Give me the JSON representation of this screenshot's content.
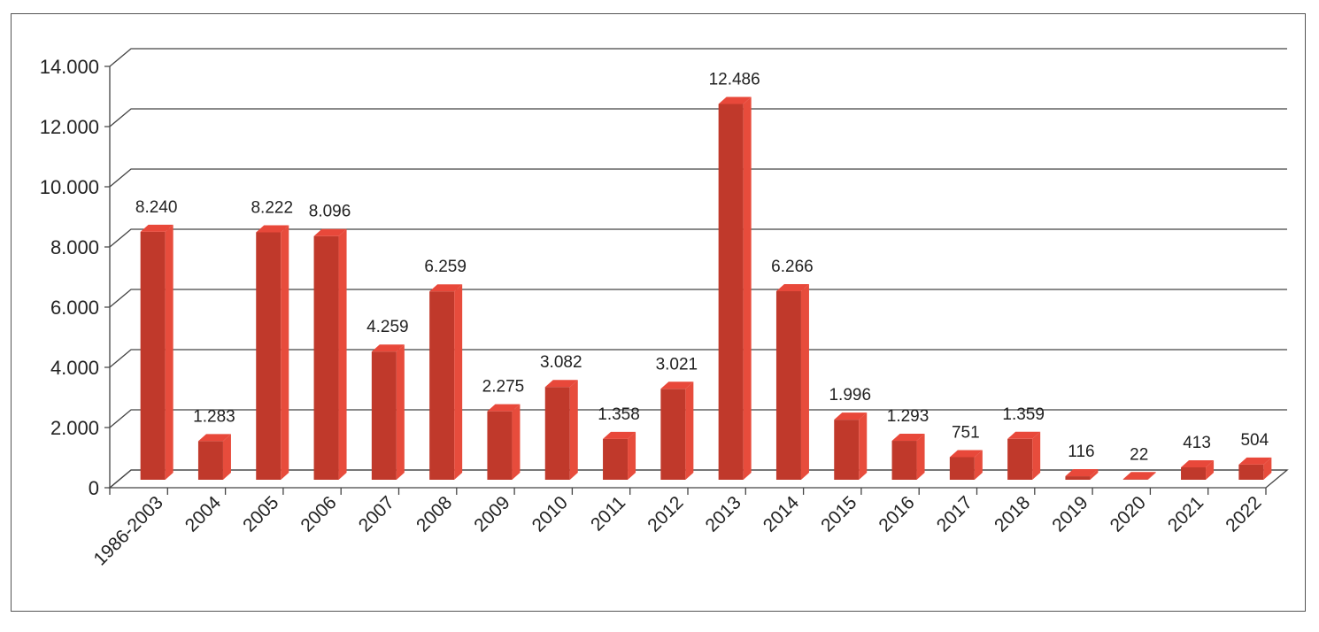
{
  "chart_data": {
    "type": "bar",
    "title": "",
    "xlabel": "",
    "ylabel": "",
    "categories": [
      "1986-2003",
      "2004",
      "2005",
      "2006",
      "2007",
      "2008",
      "2009",
      "2010",
      "2011",
      "2012",
      "2013",
      "2014",
      "2015",
      "2016",
      "2017",
      "2018",
      "2019",
      "2020",
      "2021",
      "2022"
    ],
    "values": [
      8240,
      1283,
      8222,
      8096,
      4259,
      6259,
      2275,
      3082,
      1358,
      3021,
      12486,
      6266,
      1996,
      1293,
      751,
      1359,
      116,
      22,
      413,
      504
    ],
    "value_labels": [
      "8.240",
      "1.283",
      "8.222",
      "8.096",
      "4.259",
      "6.259",
      "2.275",
      "3.082",
      "1.358",
      "3.021",
      "12.486",
      "6.266",
      "1.996",
      "1.293",
      "751",
      "1.359",
      "116",
      "22",
      "413",
      "504"
    ],
    "ylim": [
      0,
      14000
    ],
    "y_ticks": [
      0,
      2000,
      4000,
      6000,
      8000,
      10000,
      12000,
      14000
    ],
    "y_tick_labels": [
      "0",
      "2.000",
      "4.000",
      "6.000",
      "8.000",
      "10.000",
      "12.000",
      "14.000"
    ],
    "grid": true,
    "legend": "none",
    "style": "3d-column",
    "colors": {
      "bar_front": "#C0392B",
      "bar_side": "#E74C3C",
      "bar_top": "#E8483A",
      "grid": "#444444",
      "text": "#222222"
    }
  }
}
